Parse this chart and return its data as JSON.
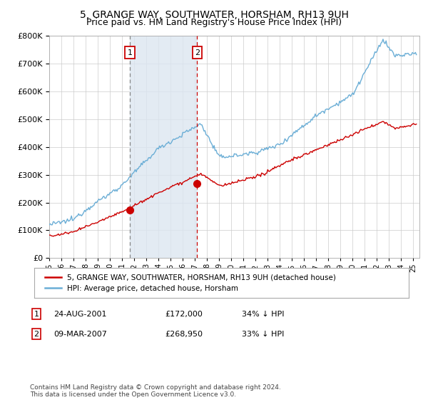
{
  "title": "5, GRANGE WAY, SOUTHWATER, HORSHAM, RH13 9UH",
  "subtitle": "Price paid vs. HM Land Registry's House Price Index (HPI)",
  "legend_line1": "5, GRANGE WAY, SOUTHWATER, HORSHAM, RH13 9UH (detached house)",
  "legend_line2": "HPI: Average price, detached house, Horsham",
  "annotation1_label": "1",
  "annotation1_date": "24-AUG-2001",
  "annotation1_price": "£172,000",
  "annotation1_hpi": "34% ↓ HPI",
  "annotation2_label": "2",
  "annotation2_date": "09-MAR-2007",
  "annotation2_price": "£268,950",
  "annotation2_hpi": "33% ↓ HPI",
  "footer": "Contains HM Land Registry data © Crown copyright and database right 2024.\nThis data is licensed under the Open Government Licence v3.0.",
  "sale1_x": 2001.65,
  "sale1_y": 172000,
  "sale2_x": 2007.19,
  "sale2_y": 268950,
  "vline1_x": 2001.65,
  "vline2_x": 2007.19,
  "ylim": [
    0,
    800000
  ],
  "xlim_start": 1995.0,
  "xlim_end": 2025.5,
  "hpi_color": "#6baed6",
  "sale_color": "#cc0000",
  "vline1_color": "#888888",
  "vline2_color": "#cc0000",
  "shade_color": "#dce6f1",
  "background_color": "#ffffff",
  "grid_color": "#cccccc",
  "title_fontsize": 10,
  "subtitle_fontsize": 9
}
